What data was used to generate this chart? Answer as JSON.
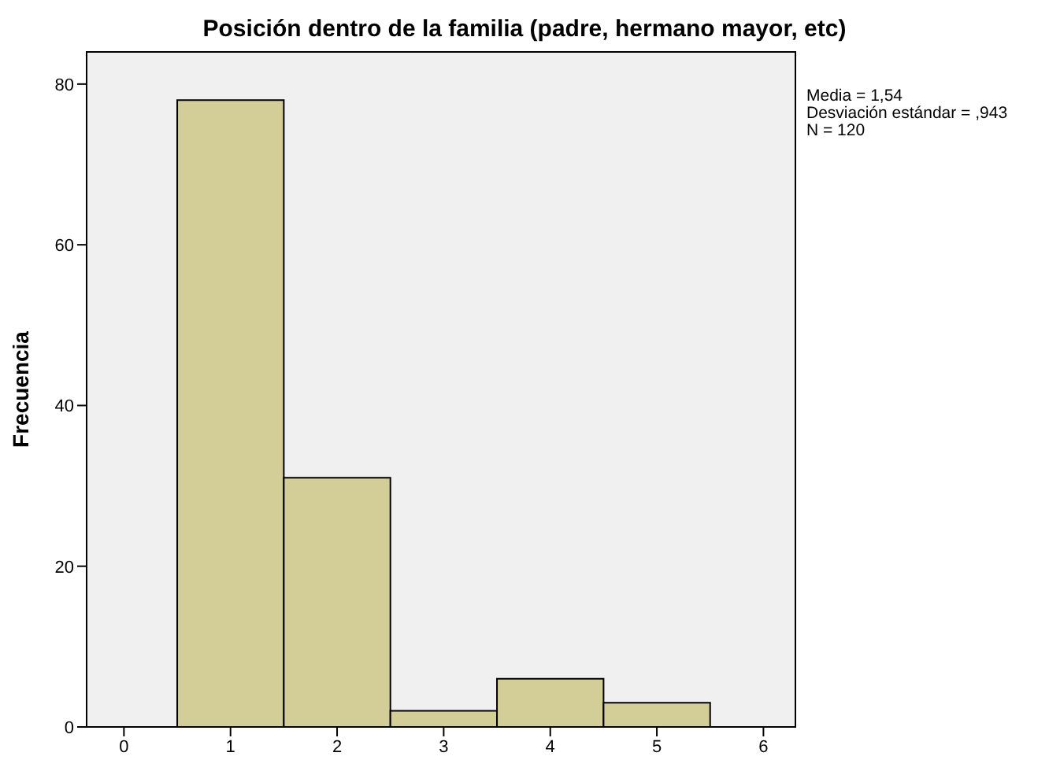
{
  "chart_data": {
    "type": "histogram",
    "title": "Posición dentro de la familia (padre, hermano mayor, etc)",
    "ylabel": "Frecuencia",
    "bins": [
      0.5,
      1.5,
      2.5,
      3.5,
      4.5,
      5.5
    ],
    "values": [
      78,
      31,
      2,
      6,
      3
    ],
    "color": "#d3ce97",
    "xlim": [
      -0.35,
      6.3
    ],
    "xticks": [
      0,
      1,
      2,
      3,
      4,
      5,
      6
    ],
    "ylim": [
      0,
      84
    ],
    "yticks": [
      0,
      20,
      40,
      60,
      80
    ],
    "annotations": [
      "Media = 1,54",
      "Desviación estándar = ,943",
      "N = 120"
    ]
  }
}
